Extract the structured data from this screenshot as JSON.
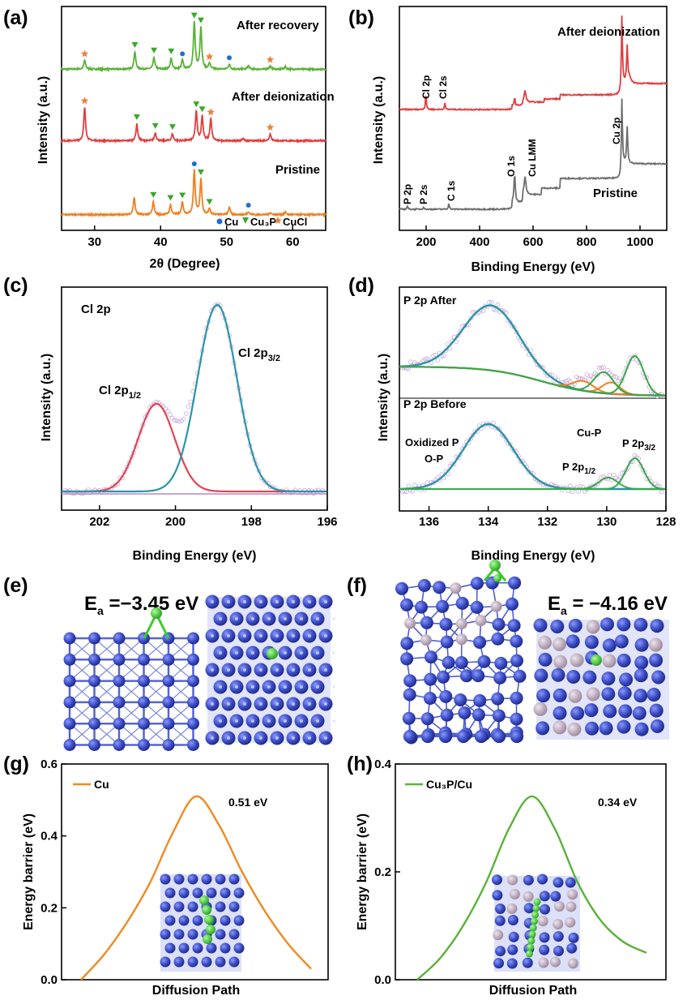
{
  "panel_labels": [
    "(a)",
    "(b)",
    "(c)",
    "(d)",
    "(e)",
    "(f)",
    "(g)",
    "(h)"
  ],
  "chart_data": [
    {
      "id": "a",
      "type": "line",
      "xlabel": "2θ (Degree)",
      "ylabel": "Intensity (a.u.)",
      "xlim": [
        25,
        65
      ],
      "xticks": [
        30,
        40,
        50,
        60
      ],
      "series": [
        {
          "name": "After recovery",
          "color": "#5ab238",
          "baseline": 0.86,
          "peaks": [
            [
              28.5,
              0.18
            ],
            [
              36.1,
              0.35
            ],
            [
              39.0,
              0.24
            ],
            [
              41.6,
              0.22
            ],
            [
              43.3,
              0.18
            ],
            [
              45.1,
              0.95
            ],
            [
              46.1,
              0.85
            ],
            [
              47.4,
              0.12
            ],
            [
              50.4,
              0.1
            ],
            [
              53.3,
              0.07
            ],
            [
              56.6,
              0.06
            ],
            [
              58.9,
              0.05
            ]
          ]
        },
        {
          "name": "After deionization",
          "color": "#e23e3e",
          "baseline": 0.54,
          "peaks": [
            [
              28.5,
              0.68
            ],
            [
              36.4,
              0.34
            ],
            [
              39.2,
              0.16
            ],
            [
              41.8,
              0.14
            ],
            [
              45.4,
              0.6
            ],
            [
              46.3,
              0.5
            ],
            [
              47.6,
              0.45
            ],
            [
              52.5,
              0.05
            ],
            [
              56.6,
              0.14
            ]
          ]
        },
        {
          "name": "Pristine",
          "color": "#f08020",
          "baseline": 0.21,
          "peaks": [
            [
              36.0,
              0.34
            ],
            [
              38.9,
              0.26
            ],
            [
              41.5,
              0.2
            ],
            [
              43.3,
              0.25
            ],
            [
              45.1,
              0.9
            ],
            [
              46.1,
              0.72
            ],
            [
              47.4,
              0.12
            ],
            [
              50.4,
              0.15
            ],
            [
              53.3,
              0.06
            ],
            [
              56.6,
              0.04
            ],
            [
              58.9,
              0.05
            ]
          ]
        }
      ],
      "legend": [
        {
          "symbol": "circle",
          "color": "#1f6fd0",
          "label": "Cu"
        },
        {
          "symbol": "triangle",
          "color": "#3aa82a",
          "label": "Cu₃P"
        },
        {
          "symbol": "star",
          "color": "#e8823a",
          "label": "CuCl"
        }
      ]
    },
    {
      "id": "b",
      "type": "line",
      "xlabel": "Binding Energy (eV)",
      "ylabel": "Intensity (a.u.)",
      "xlim": [
        100,
        1100
      ],
      "xticks": [
        200,
        400,
        600,
        800,
        1000
      ],
      "series": [
        {
          "name": "After deionization",
          "color": "#e23e3e"
        },
        {
          "name": "Pristine",
          "color": "#6e6e6e"
        }
      ],
      "annotations": [
        "Cl 2p",
        "Cl 2s",
        "P 2p",
        "P 2s",
        "C 1s",
        "O 1s",
        "Cu LMM",
        "Cu 2p"
      ]
    },
    {
      "id": "c",
      "type": "line",
      "title": "Cl 2p",
      "xlabel": "Binding Energy (eV)",
      "ylabel": "Intensity (a.u.)",
      "xlim": [
        203,
        196
      ],
      "xticks": [
        202,
        200,
        198,
        196
      ],
      "series": [
        {
          "name": "Cl 2p1/2",
          "color": "#e04552",
          "center": 200.5,
          "height": 0.47
        },
        {
          "name": "Cl 2p3/2",
          "color": "#2a95a8",
          "center": 198.9,
          "height": 1.0
        }
      ]
    },
    {
      "id": "d",
      "type": "line",
      "xlabel": "Binding Energy (eV)",
      "ylabel": "Intensity (a.u.)",
      "xlim": [
        137,
        128
      ],
      "xticks": [
        136,
        134,
        132,
        130,
        128
      ],
      "subplots": [
        {
          "title": "P 2p After",
          "components": [
            {
              "name": "O-P",
              "center": 133.9,
              "color": "#2a95a8"
            },
            {
              "name": "Oxidized P",
              "center": 130.8,
              "color": "#f08020"
            },
            {
              "name": "Cu-P 1/2",
              "center": 129.9,
              "color": "#f08020"
            },
            {
              "name": "Cu-P 3/2",
              "center": 129.0,
              "color": "#3aa84a"
            }
          ]
        },
        {
          "title": "P 2p Before",
          "components": [
            {
              "name": "O-P",
              "center": 134.0,
              "color": "#2a95a8"
            },
            {
              "name": "P 2p1/2",
              "center": 129.9,
              "color": "#3aa84a"
            },
            {
              "name": "P 2p3/2",
              "center": 129.0,
              "color": "#3aa84a"
            }
          ]
        }
      ],
      "labels": [
        "Oxidized P",
        "O-P",
        "Cu-P",
        "P 2p1/2",
        "P 2p3/2"
      ]
    },
    {
      "id": "g",
      "type": "line",
      "xlabel": "Diffusion Path",
      "ylabel": "Energy barrier (eV)",
      "ylim": [
        0.0,
        0.6
      ],
      "yticks": [
        "0.0",
        "0.2",
        "0.4",
        "0.6"
      ],
      "series": [
        {
          "name": "Cu",
          "color": "#f08a20",
          "x": [
            0,
            0.1,
            0.2,
            0.3,
            0.4,
            0.5,
            0.6,
            0.7,
            0.8,
            0.9,
            1.0
          ],
          "y": [
            0.0,
            0.07,
            0.16,
            0.27,
            0.41,
            0.51,
            0.43,
            0.3,
            0.19,
            0.1,
            0.03
          ]
        }
      ],
      "annotation": "0.51 eV"
    },
    {
      "id": "h",
      "type": "line",
      "xlabel": "Diffusion Path",
      "ylabel": "Energy barrier (eV)",
      "ylim": [
        0.0,
        0.4
      ],
      "yticks": [
        "0.0",
        "0.2",
        "0.4"
      ],
      "series": [
        {
          "name": "Cu₃P/Cu",
          "color": "#5ab238",
          "x": [
            0,
            0.1,
            0.2,
            0.3,
            0.4,
            0.5,
            0.6,
            0.7,
            0.8,
            0.9,
            1.0
          ],
          "y": [
            0.0,
            0.04,
            0.1,
            0.18,
            0.28,
            0.34,
            0.28,
            0.18,
            0.11,
            0.07,
            0.05
          ]
        }
      ],
      "annotation": "0.34 eV"
    }
  ],
  "structures": {
    "e": {
      "energy": "E",
      "sub": "a",
      "value": " =−3.45 eV"
    },
    "f": {
      "energy": "E",
      "sub": "a",
      "value": " = −4.16 eV"
    }
  },
  "colors": {
    "atom_cu": "#3d4fc7",
    "atom_p": "#b9a6b8",
    "atom_cl": "#3ccc2a"
  }
}
